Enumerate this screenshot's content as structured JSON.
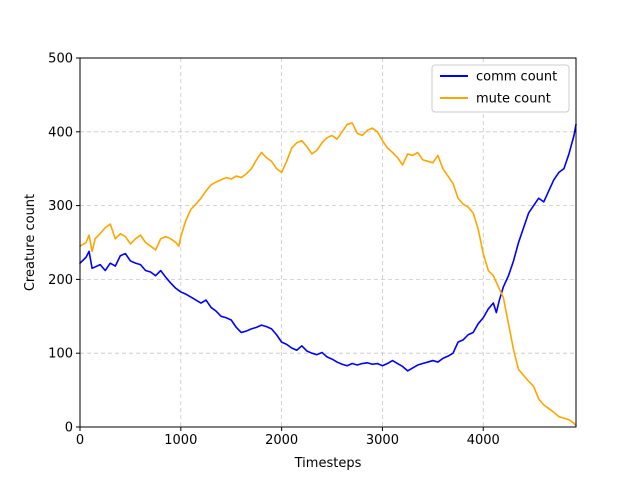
{
  "chart_data": {
    "type": "line",
    "title": "",
    "xlabel": "Timesteps",
    "ylabel": "Creature count",
    "xlim": [
      0,
      4920
    ],
    "ylim": [
      0,
      500
    ],
    "xticks": [
      0,
      1000,
      2000,
      3000,
      4000
    ],
    "yticks": [
      0,
      100,
      200,
      300,
      400,
      500
    ],
    "grid": true,
    "grid_style": "dashed",
    "legend_position": "top-right",
    "series": [
      {
        "name": "comm count",
        "color": "#0000ff",
        "points": [
          [
            0,
            222
          ],
          [
            60,
            230
          ],
          [
            90,
            238
          ],
          [
            120,
            215
          ],
          [
            200,
            220
          ],
          [
            250,
            212
          ],
          [
            300,
            222
          ],
          [
            350,
            218
          ],
          [
            400,
            232
          ],
          [
            450,
            235
          ],
          [
            500,
            225
          ],
          [
            550,
            222
          ],
          [
            600,
            220
          ],
          [
            650,
            212
          ],
          [
            700,
            210
          ],
          [
            750,
            205
          ],
          [
            800,
            212
          ],
          [
            850,
            203
          ],
          [
            900,
            195
          ],
          [
            950,
            188
          ],
          [
            1000,
            183
          ],
          [
            1050,
            180
          ],
          [
            1100,
            176
          ],
          [
            1150,
            172
          ],
          [
            1200,
            168
          ],
          [
            1250,
            172
          ],
          [
            1300,
            162
          ],
          [
            1350,
            157
          ],
          [
            1400,
            150
          ],
          [
            1450,
            148
          ],
          [
            1500,
            145
          ],
          [
            1550,
            135
          ],
          [
            1600,
            128
          ],
          [
            1650,
            130
          ],
          [
            1700,
            133
          ],
          [
            1750,
            135
          ],
          [
            1800,
            138
          ],
          [
            1850,
            136
          ],
          [
            1900,
            133
          ],
          [
            1950,
            125
          ],
          [
            2000,
            115
          ],
          [
            2050,
            112
          ],
          [
            2100,
            107
          ],
          [
            2150,
            104
          ],
          [
            2200,
            110
          ],
          [
            2250,
            103
          ],
          [
            2300,
            100
          ],
          [
            2350,
            98
          ],
          [
            2400,
            101
          ],
          [
            2450,
            95
          ],
          [
            2500,
            92
          ],
          [
            2550,
            88
          ],
          [
            2600,
            85
          ],
          [
            2650,
            83
          ],
          [
            2700,
            86
          ],
          [
            2750,
            84
          ],
          [
            2800,
            86
          ],
          [
            2850,
            87
          ],
          [
            2900,
            85
          ],
          [
            2950,
            86
          ],
          [
            3000,
            83
          ],
          [
            3050,
            86
          ],
          [
            3100,
            90
          ],
          [
            3150,
            86
          ],
          [
            3200,
            82
          ],
          [
            3250,
            76
          ],
          [
            3300,
            80
          ],
          [
            3350,
            84
          ],
          [
            3400,
            86
          ],
          [
            3450,
            88
          ],
          [
            3500,
            90
          ],
          [
            3550,
            88
          ],
          [
            3600,
            93
          ],
          [
            3650,
            96
          ],
          [
            3700,
            100
          ],
          [
            3750,
            115
          ],
          [
            3800,
            118
          ],
          [
            3850,
            125
          ],
          [
            3900,
            128
          ],
          [
            3950,
            140
          ],
          [
            4000,
            148
          ],
          [
            4050,
            160
          ],
          [
            4100,
            168
          ],
          [
            4130,
            155
          ],
          [
            4160,
            172
          ],
          [
            4200,
            190
          ],
          [
            4250,
            205
          ],
          [
            4300,
            225
          ],
          [
            4350,
            250
          ],
          [
            4400,
            270
          ],
          [
            4450,
            290
          ],
          [
            4500,
            300
          ],
          [
            4550,
            310
          ],
          [
            4600,
            305
          ],
          [
            4650,
            320
          ],
          [
            4700,
            335
          ],
          [
            4750,
            345
          ],
          [
            4800,
            350
          ],
          [
            4850,
            370
          ],
          [
            4900,
            395
          ],
          [
            4920,
            410
          ]
        ]
      },
      {
        "name": "mute count",
        "color": "#ffa500",
        "points": [
          [
            0,
            245
          ],
          [
            60,
            250
          ],
          [
            90,
            260
          ],
          [
            120,
            238
          ],
          [
            150,
            255
          ],
          [
            200,
            262
          ],
          [
            250,
            270
          ],
          [
            300,
            275
          ],
          [
            350,
            255
          ],
          [
            400,
            262
          ],
          [
            450,
            258
          ],
          [
            500,
            248
          ],
          [
            550,
            255
          ],
          [
            600,
            260
          ],
          [
            650,
            250
          ],
          [
            700,
            245
          ],
          [
            750,
            240
          ],
          [
            800,
            255
          ],
          [
            850,
            258
          ],
          [
            900,
            255
          ],
          [
            950,
            250
          ],
          [
            980,
            245
          ],
          [
            1000,
            258
          ],
          [
            1050,
            280
          ],
          [
            1100,
            295
          ],
          [
            1150,
            302
          ],
          [
            1200,
            310
          ],
          [
            1250,
            320
          ],
          [
            1300,
            328
          ],
          [
            1350,
            332
          ],
          [
            1400,
            335
          ],
          [
            1450,
            338
          ],
          [
            1500,
            336
          ],
          [
            1550,
            340
          ],
          [
            1600,
            338
          ],
          [
            1650,
            343
          ],
          [
            1700,
            350
          ],
          [
            1750,
            362
          ],
          [
            1800,
            372
          ],
          [
            1850,
            365
          ],
          [
            1900,
            360
          ],
          [
            1950,
            350
          ],
          [
            2000,
            345
          ],
          [
            2050,
            360
          ],
          [
            2100,
            378
          ],
          [
            2150,
            385
          ],
          [
            2200,
            388
          ],
          [
            2250,
            380
          ],
          [
            2300,
            370
          ],
          [
            2350,
            375
          ],
          [
            2400,
            385
          ],
          [
            2450,
            392
          ],
          [
            2500,
            395
          ],
          [
            2550,
            390
          ],
          [
            2600,
            400
          ],
          [
            2650,
            410
          ],
          [
            2700,
            412
          ],
          [
            2750,
            398
          ],
          [
            2800,
            395
          ],
          [
            2850,
            402
          ],
          [
            2900,
            405
          ],
          [
            2950,
            400
          ],
          [
            3000,
            388
          ],
          [
            3050,
            378
          ],
          [
            3100,
            372
          ],
          [
            3150,
            365
          ],
          [
            3200,
            355
          ],
          [
            3250,
            370
          ],
          [
            3300,
            368
          ],
          [
            3350,
            372
          ],
          [
            3400,
            362
          ],
          [
            3450,
            360
          ],
          [
            3500,
            358
          ],
          [
            3550,
            368
          ],
          [
            3600,
            350
          ],
          [
            3650,
            340
          ],
          [
            3700,
            330
          ],
          [
            3750,
            310
          ],
          [
            3800,
            302
          ],
          [
            3850,
            298
          ],
          [
            3900,
            290
          ],
          [
            3950,
            268
          ],
          [
            4000,
            235
          ],
          [
            4050,
            212
          ],
          [
            4100,
            205
          ],
          [
            4150,
            190
          ],
          [
            4200,
            175
          ],
          [
            4250,
            140
          ],
          [
            4300,
            105
          ],
          [
            4350,
            78
          ],
          [
            4400,
            70
          ],
          [
            4450,
            62
          ],
          [
            4500,
            55
          ],
          [
            4550,
            38
          ],
          [
            4600,
            30
          ],
          [
            4650,
            25
          ],
          [
            4700,
            20
          ],
          [
            4750,
            14
          ],
          [
            4800,
            12
          ],
          [
            4850,
            10
          ],
          [
            4900,
            5
          ],
          [
            4920,
            2
          ]
        ]
      }
    ]
  }
}
